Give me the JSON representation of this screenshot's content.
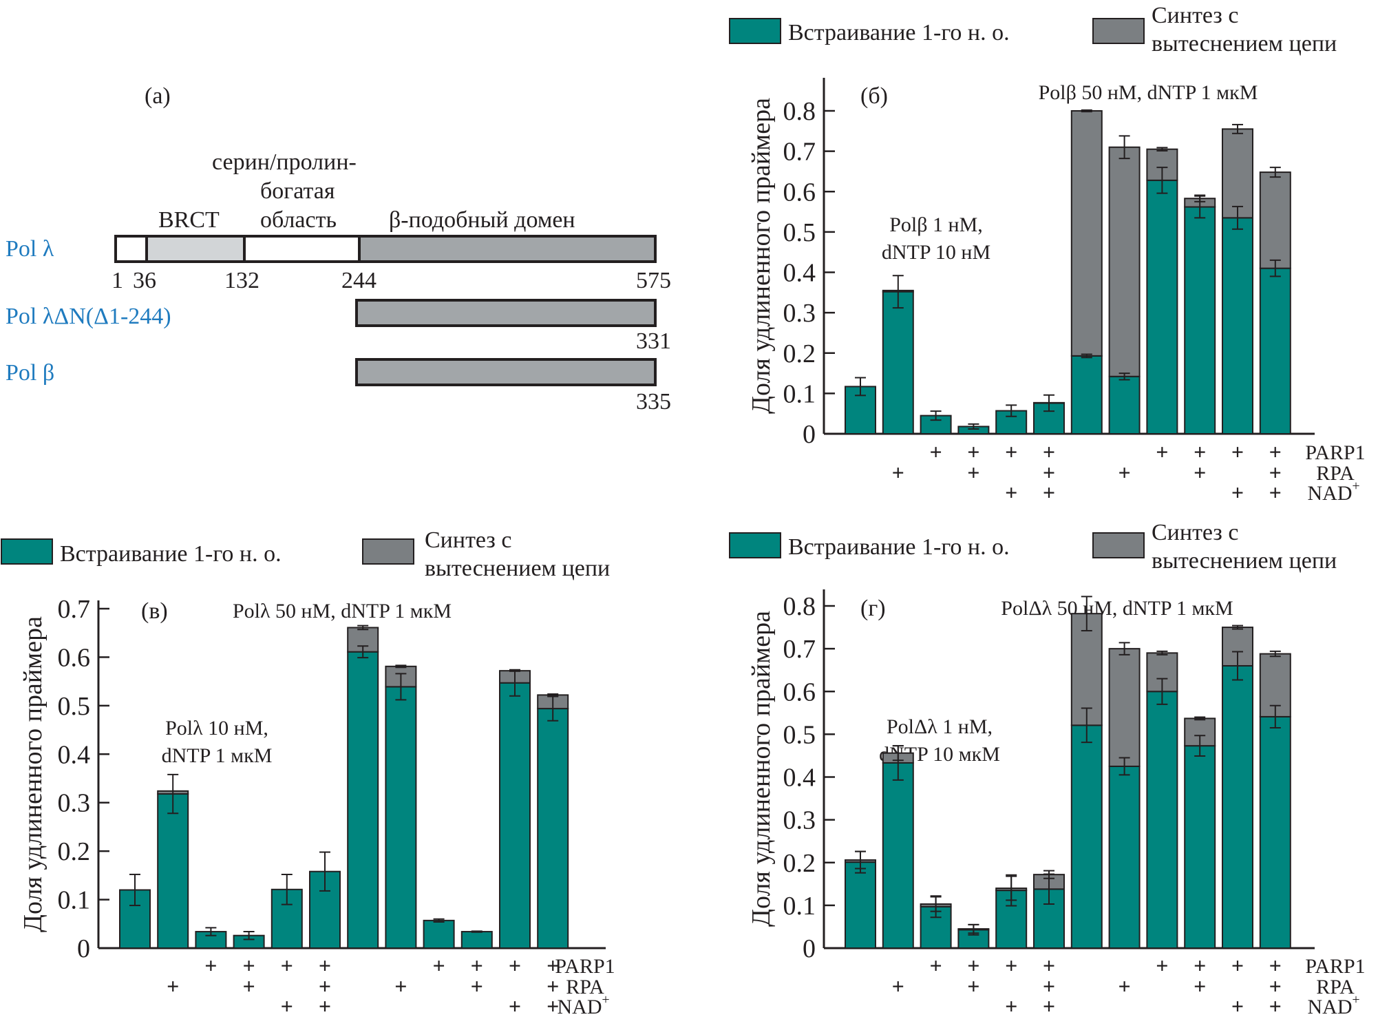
{
  "colors": {
    "incorporation": "#00857e",
    "displacement": "#7b7f82",
    "axis": "#231f20",
    "protein_label": "#1f7bbf",
    "domain_white": "#ffffff",
    "domain_light": "#d2d5d7",
    "domain_dark": "#a2a6a9"
  },
  "panel_a": {
    "label": "(а)",
    "region_labels": {
      "brct": "BRCT",
      "ser_pro_line1": "серин/пролин-",
      "ser_pro_line2": "богатая",
      "ser_pro_line3": "область",
      "beta_like": "β-подобный домен"
    },
    "proteins": [
      {
        "name": "Pol λ",
        "start": 1,
        "end": 575,
        "segments": [
          {
            "from": 1,
            "to": 36,
            "fill": "domain_white"
          },
          {
            "from": 36,
            "to": 132,
            "fill": "domain_light"
          },
          {
            "from": 132,
            "to": 244,
            "fill": "domain_white"
          },
          {
            "from": 244,
            "to": 575,
            "fill": "domain_dark"
          }
        ],
        "ticks": [
          "1",
          "36",
          "132",
          "244",
          "575"
        ]
      },
      {
        "name": "Pol λΔN(Δ1-244)",
        "length_label": "331"
      },
      {
        "name": "Pol β",
        "length_label": "335"
      }
    ]
  },
  "legend": {
    "incorporation": "Встраивание 1-го н. о.",
    "displacement_line1": "Синтез с",
    "displacement_line2": "вытеснением цепи"
  },
  "condition_rows": [
    "PARP1",
    "RPA",
    "NAD+"
  ],
  "condition_row_labels": {
    "parp1": "PARP1",
    "rpa": "RPA",
    "nad": "NAD",
    "nad_sup": "+"
  },
  "conditions": [
    {
      "parp1": false,
      "rpa": false,
      "nad": false
    },
    {
      "parp1": false,
      "rpa": true,
      "nad": false
    },
    {
      "parp1": true,
      "rpa": false,
      "nad": false
    },
    {
      "parp1": true,
      "rpa": true,
      "nad": false
    },
    {
      "parp1": true,
      "rpa": false,
      "nad": true
    },
    {
      "parp1": true,
      "rpa": true,
      "nad": true
    },
    {
      "parp1": false,
      "rpa": false,
      "nad": false
    },
    {
      "parp1": false,
      "rpa": true,
      "nad": false
    },
    {
      "parp1": true,
      "rpa": false,
      "nad": false
    },
    {
      "parp1": true,
      "rpa": true,
      "nad": false
    },
    {
      "parp1": true,
      "rpa": false,
      "nad": true
    },
    {
      "parp1": true,
      "rpa": true,
      "nad": true
    }
  ],
  "plus_sign": "+",
  "chart_data": [
    {
      "id": "b",
      "type": "bar",
      "stacked": true,
      "panel_label": "(б)",
      "ylabel": "Доля удлиненного праймера",
      "ylim": [
        0,
        0.88
      ],
      "yticks": [
        0,
        0.1,
        0.2,
        0.3,
        0.4,
        0.5,
        0.6,
        0.7,
        0.8
      ],
      "ytick_labels": [
        "0",
        "0.1",
        "0.2",
        "0.3",
        "0.4",
        "0.5",
        "0.6",
        "0.7",
        "0.8"
      ],
      "annotations": {
        "group1_line1": "Polβ 1 нМ,",
        "group1_line2": "dNTP 10 нМ",
        "group2": "Polβ 50 нМ, dNTP 1 мкМ"
      },
      "legend_position": "top",
      "series": [
        {
          "name": "Встраивание 1-го н. о.",
          "values": [
            0.117,
            0.352,
            0.045,
            0.018,
            0.057,
            0.076,
            0.193,
            0.142,
            0.628,
            0.562,
            0.535,
            0.41
          ],
          "errors": [
            0.022,
            0.04,
            0.011,
            0.006,
            0.014,
            0.02,
            0.004,
            0.008,
            0.032,
            0.027,
            0.028,
            0.02
          ]
        },
        {
          "name": "Синтез с вытеснением цепи",
          "values": [
            0.0,
            0.003,
            0.0,
            0.0,
            0.0,
            0.001,
            0.607,
            0.568,
            0.077,
            0.021,
            0.22,
            0.238
          ],
          "errors": [
            0,
            0,
            0,
            0,
            0,
            0,
            0.002,
            0.028,
            0.004,
            0.008,
            0.011,
            0.012
          ]
        }
      ]
    },
    {
      "id": "v",
      "type": "bar",
      "stacked": true,
      "panel_label": "(в)",
      "ylabel": "Доля удлиненного праймера",
      "ylim": [
        0,
        0.72
      ],
      "yticks": [
        0,
        0.1,
        0.2,
        0.3,
        0.4,
        0.5,
        0.6,
        0.7
      ],
      "ytick_labels": [
        "0",
        "0.1",
        "0.2",
        "0.3",
        "0.4",
        "0.5",
        "0.6",
        "0.7"
      ],
      "annotations": {
        "group1_line1": "Polλ 10 нМ,",
        "group1_line2": "dNTP 1 мкМ",
        "group2": "Polλ 50 нМ, dNTP 1 мкМ"
      },
      "legend_position": "top",
      "series": [
        {
          "name": "Встраивание 1-го н. о.",
          "values": [
            0.12,
            0.318,
            0.034,
            0.026,
            0.121,
            0.158,
            0.611,
            0.539,
            0.057,
            0.034,
            0.547,
            0.494
          ],
          "errors": [
            0.032,
            0.04,
            0.008,
            0.008,
            0.031,
            0.04,
            0.012,
            0.027,
            0.003,
            0.001,
            0.027,
            0.025
          ]
        },
        {
          "name": "Синтез с вытеснением цепи",
          "values": [
            0.0,
            0.006,
            0.0,
            0.0,
            0.0,
            0.0,
            0.05,
            0.042,
            0.0,
            0.0,
            0.025,
            0.028
          ],
          "errors": [
            0,
            0,
            0,
            0,
            0,
            0,
            0.004,
            0.002,
            0,
            0,
            0.001,
            0.002
          ]
        }
      ]
    },
    {
      "id": "g",
      "type": "bar",
      "stacked": true,
      "panel_label": "(г)",
      "ylabel": "Доля удлиненного праймера",
      "ylim": [
        0,
        0.82
      ],
      "yticks": [
        0,
        0.1,
        0.2,
        0.3,
        0.4,
        0.5,
        0.6,
        0.7,
        0.8
      ],
      "ytick_labels": [
        "0",
        "0.1",
        "0.2",
        "0.3",
        "0.4",
        "0.5",
        "0.6",
        "0.7",
        "0.8"
      ],
      "annotations": {
        "group1_line1": "PolΔλ 1 нМ,",
        "group1_line2": "dNTP 10 мкМ",
        "group2": "PolΔλ 50 нМ, dNTP 1 мкМ"
      },
      "legend_position": "top",
      "series": [
        {
          "name": "Встраивание 1-го н. о.",
          "values": [
            0.201,
            0.433,
            0.097,
            0.043,
            0.135,
            0.138,
            0.521,
            0.425,
            0.6,
            0.473,
            0.66,
            0.541
          ],
          "errors": [
            0.025,
            0.04,
            0.025,
            0.012,
            0.036,
            0.035,
            0.04,
            0.02,
            0.03,
            0.024,
            0.033,
            0.026
          ]
        },
        {
          "name": "Синтез с вытеснением цепи",
          "values": [
            0.005,
            0.023,
            0.006,
            0.002,
            0.005,
            0.034,
            0.261,
            0.275,
            0.09,
            0.064,
            0.09,
            0.147
          ],
          "errors": [
            0.02,
            0.017,
            0.017,
            0.01,
            0.028,
            0.009,
            0.04,
            0.014,
            0.004,
            0.003,
            0.004,
            0.006
          ]
        }
      ]
    }
  ]
}
